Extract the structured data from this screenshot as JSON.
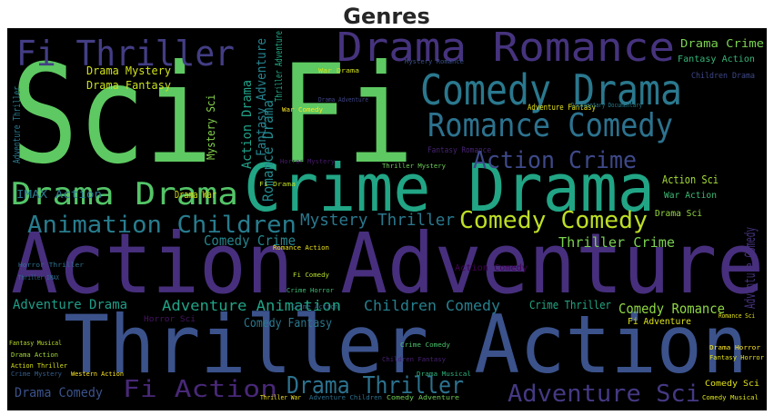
{
  "chart_data": {
    "type": "wordcloud",
    "title": "Genres",
    "background": "#000000",
    "words": [
      {
        "text": "Sci Fi",
        "color": "#5ec962"
      },
      {
        "text": "Action Adventure",
        "color": "#472f7d"
      },
      {
        "text": "Thriller Action",
        "color": "#3b528b"
      },
      {
        "text": "Crime Drama",
        "color": "#21a585"
      },
      {
        "text": "Drama Romance",
        "color": "#46337e"
      },
      {
        "text": "Comedy Drama",
        "color": "#2a788e"
      },
      {
        "text": "Romance Comedy",
        "color": "#2c728e"
      },
      {
        "text": "Fi Thriller",
        "color": "#433e85"
      },
      {
        "text": "Drama Drama",
        "color": "#54c568"
      },
      {
        "text": "Animation Children",
        "color": "#287c8e"
      },
      {
        "text": "Action Crime",
        "color": "#3e4989"
      },
      {
        "text": "Comedy Comedy",
        "color": "#bddf26"
      },
      {
        "text": "Mystery Thriller",
        "color": "#2a788e"
      },
      {
        "text": "Comedy Crime",
        "color": "#25858e"
      },
      {
        "text": "Thriller Crime",
        "color": "#7ad151"
      },
      {
        "text": "Adventure Animation",
        "color": "#20a486"
      },
      {
        "text": "Children Comedy",
        "color": "#277f8e"
      },
      {
        "text": "Crime Thriller",
        "color": "#22a884"
      },
      {
        "text": "Comedy Romance",
        "color": "#8fd744"
      },
      {
        "text": "Adventure Drama",
        "color": "#1f9e89"
      },
      {
        "text": "Comedy Fantasy",
        "color": "#2a788e"
      },
      {
        "text": "Fi Action",
        "color": "#482878"
      },
      {
        "text": "Drama Thriller",
        "color": "#2c728e"
      },
      {
        "text": "Adventure Sci",
        "color": "#443983"
      },
      {
        "text": "Drama Comedy",
        "color": "#3b528b"
      },
      {
        "text": "Drama Mystery",
        "color": "#d2e21b"
      },
      {
        "text": "Drama Fantasy",
        "color": "#c8e020"
      },
      {
        "text": "IMAX Action",
        "color": "#2a788e"
      },
      {
        "text": "Drama War",
        "color": "#d8e219"
      },
      {
        "text": "Drama Crime",
        "color": "#7ad151"
      },
      {
        "text": "Fantasy Action",
        "color": "#35b779"
      },
      {
        "text": "Action Sci",
        "color": "#a5db36"
      },
      {
        "text": "War Action",
        "color": "#3dbc74"
      },
      {
        "text": "Drama Sci",
        "color": "#95d840"
      },
      {
        "text": "Fi Adventure",
        "color": "#dde318"
      },
      {
        "text": "Adventure Fantasy",
        "color": "#e5e419"
      },
      {
        "text": "Fantasy Romance",
        "color": "#482475"
      },
      {
        "text": "Action Comedy",
        "color": "#440154"
      },
      {
        "text": "Horror Sci",
        "color": "#471365"
      },
      {
        "text": "Comedy Sci",
        "color": "#e2e418"
      },
      {
        "text": "Romance Drama",
        "color": "#23898e"
      },
      {
        "text": "Action Drama",
        "color": "#1fa188"
      },
      {
        "text": "Fantasy Adventure",
        "color": "#26828e"
      },
      {
        "text": "Thriller Adventure",
        "color": "#22a884"
      },
      {
        "text": "Adventure Comedy",
        "color": "#46327e"
      },
      {
        "text": "Mystery Sci",
        "color": "#84d44b"
      },
      {
        "text": "Adventure Thriller",
        "color": "#2a788e"
      },
      {
        "text": "Children Drama",
        "color": "#3e4989"
      },
      {
        "text": "War Drama",
        "color": "#d0e11c"
      },
      {
        "text": "War Comedy",
        "color": "#fde725"
      },
      {
        "text": "Horror Mystery",
        "color": "#481a6c"
      },
      {
        "text": "Thriller Mystery",
        "color": "#6ece58"
      },
      {
        "text": "Romance Action",
        "color": "#f1e51d"
      },
      {
        "text": "Fi Comedy",
        "color": "#b5de2b"
      },
      {
        "text": "Crime Horror",
        "color": "#3fbc73"
      },
      {
        "text": "Crime Action",
        "color": "#31688e"
      },
      {
        "text": "Horror Thriller",
        "color": "#2d708e"
      },
      {
        "text": "Thriller IMAX",
        "color": "#306a8e"
      },
      {
        "text": "Fantasy Musical",
        "color": "#b8de29"
      },
      {
        "text": "Drama Action",
        "color": "#a2da37"
      },
      {
        "text": "Action Thriller",
        "color": "#d8e219"
      },
      {
        "text": "Crime Mystery",
        "color": "#355f8d"
      },
      {
        "text": "Western Action",
        "color": "#fde725"
      },
      {
        "text": "Crime Comedy",
        "color": "#4ac16d"
      },
      {
        "text": "Children Fantasy",
        "color": "#482173"
      },
      {
        "text": "Drama Musical",
        "color": "#2db27d"
      },
      {
        "text": "Thriller War",
        "color": "#f4e61e"
      },
      {
        "text": "Adventure Children",
        "color": "#2d708e"
      },
      {
        "text": "Comedy Adventure",
        "color": "#73d056"
      },
      {
        "text": "Comedy Musical",
        "color": "#dde318"
      },
      {
        "text": "Drama Horror",
        "color": "#fde725"
      },
      {
        "text": "Fantasy Horror",
        "color": "#e7e419"
      },
      {
        "text": "Drama Adventure",
        "color": "#404688"
      },
      {
        "text": "Documentary Documentary",
        "color": "#287d8e"
      },
      {
        "text": "Mystery Romance",
        "color": "#3b528b"
      },
      {
        "text": "Romance Sci",
        "color": "#e2e418"
      },
      {
        "text": "Fi Drama",
        "color": "#c2df23"
      }
    ]
  }
}
